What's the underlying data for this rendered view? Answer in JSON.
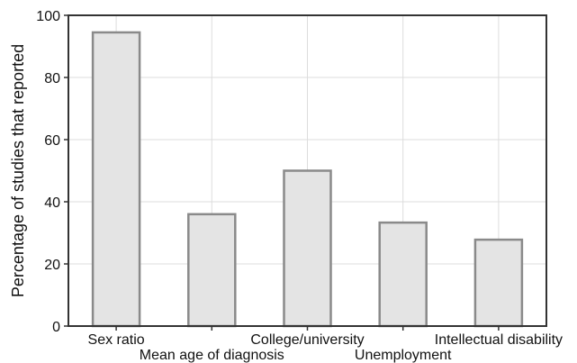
{
  "chart_data": {
    "type": "bar",
    "categories": [
      "Sex ratio",
      "Mean age of diagnosis",
      "College/university",
      "Unemployment",
      "Intellectual disability"
    ],
    "values": [
      94.5,
      36,
      50,
      33.3,
      27.8
    ],
    "title": "",
    "xlabel": "",
    "ylabel": "Percentage of studies that reported",
    "ylim": [
      0,
      100
    ],
    "yticks": [
      0,
      20,
      40,
      60,
      80,
      100
    ],
    "grid": true,
    "colors": {
      "bar_fill": "#e4e4e4",
      "bar_stroke": "#8a8a8a",
      "grid": "#dddddd",
      "axes": "#333333"
    }
  }
}
